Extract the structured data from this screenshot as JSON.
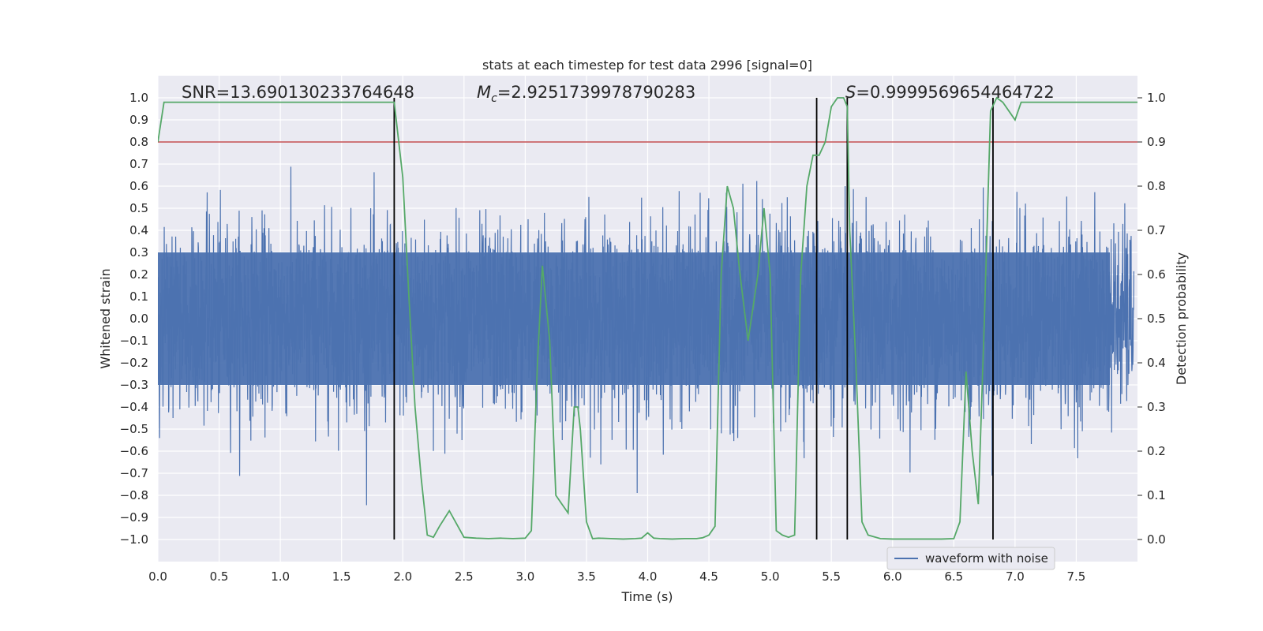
{
  "chart_data": {
    "type": "line",
    "title": "stats at each timestep for test data 2996 [signal=0]",
    "xlabel": "Time (s)",
    "ylabel": "Whitened strain",
    "y2label": "Detection probability",
    "xlim": [
      0.0,
      8.0
    ],
    "ylim": [
      -1.1,
      1.1
    ],
    "y2lim": [
      -0.05,
      1.05
    ],
    "xticks": [
      "0.0",
      "0.5",
      "1.0",
      "1.5",
      "2.0",
      "2.5",
      "3.0",
      "3.5",
      "4.0",
      "4.5",
      "5.0",
      "5.5",
      "6.0",
      "6.5",
      "7.0",
      "7.5"
    ],
    "yticks": [
      "1.0",
      "0.9",
      "0.8",
      "0.7",
      "0.6",
      "0.5",
      "0.4",
      "0.3",
      "0.2",
      "0.1",
      "0.0",
      "−0.1",
      "−0.2",
      "−0.3",
      "−0.4",
      "−0.5",
      "−0.6",
      "−0.7",
      "−0.8",
      "−0.9",
      "−1.0"
    ],
    "y2ticks": [
      "1.0",
      "0.9",
      "0.8",
      "0.7",
      "0.6",
      "0.5",
      "0.4",
      "0.3",
      "0.2",
      "0.1",
      "0.0"
    ],
    "annotations": {
      "snr": "SNR=13.690130233764648",
      "mc_symbol": "M",
      "mc_sub": "c",
      "mc_value": "=2.9251739978790283",
      "s_symbol": "S",
      "s_value": "=0.9999569654464722"
    },
    "legend": {
      "label": "waveform with noise",
      "placement": "lower-right"
    },
    "threshold_y2": 0.9,
    "vlines_x": [
      1.93,
      5.38,
      5.63,
      6.82
    ],
    "probability_series": {
      "x": [
        0.0,
        0.05,
        0.1,
        0.2,
        0.3,
        0.4,
        0.5,
        0.6,
        0.7,
        0.8,
        0.9,
        1.0,
        1.1,
        1.2,
        1.3,
        1.4,
        1.5,
        1.6,
        1.7,
        1.8,
        1.9,
        1.93,
        2.0,
        2.05,
        2.1,
        2.15,
        2.2,
        2.25,
        2.3,
        2.38,
        2.45,
        2.5,
        2.6,
        2.7,
        2.8,
        2.9,
        3.0,
        3.05,
        3.1,
        3.14,
        3.2,
        3.25,
        3.3,
        3.35,
        3.4,
        3.43,
        3.45,
        3.5,
        3.55,
        3.6,
        3.7,
        3.8,
        3.9,
        3.95,
        4.0,
        4.05,
        4.1,
        4.2,
        4.3,
        4.4,
        4.45,
        4.5,
        4.55,
        4.6,
        4.65,
        4.7,
        4.75,
        4.82,
        4.9,
        4.95,
        5.0,
        5.05,
        5.1,
        5.15,
        5.2,
        5.25,
        5.3,
        5.35,
        5.4,
        5.45,
        5.5,
        5.55,
        5.6,
        5.63,
        5.65,
        5.7,
        5.75,
        5.8,
        5.9,
        6.0,
        6.2,
        6.4,
        6.5,
        6.55,
        6.6,
        6.65,
        6.7,
        6.75,
        6.8,
        6.85,
        6.9,
        6.95,
        7.0,
        7.05,
        7.1,
        7.2,
        7.3,
        7.5,
        7.8,
        8.0
      ],
      "y": [
        0.9,
        0.99,
        0.99,
        0.99,
        0.99,
        0.99,
        0.99,
        0.99,
        0.99,
        0.99,
        0.99,
        0.99,
        0.99,
        0.99,
        0.99,
        0.99,
        0.99,
        0.99,
        0.99,
        0.99,
        0.99,
        0.99,
        0.82,
        0.55,
        0.3,
        0.14,
        0.01,
        0.005,
        0.03,
        0.065,
        0.03,
        0.005,
        0.003,
        0.002,
        0.003,
        0.002,
        0.003,
        0.02,
        0.4,
        0.62,
        0.45,
        0.1,
        0.08,
        0.06,
        0.3,
        0.3,
        0.25,
        0.04,
        0.002,
        0.003,
        0.002,
        0.001,
        0.002,
        0.003,
        0.015,
        0.003,
        0.002,
        0.001,
        0.002,
        0.002,
        0.004,
        0.01,
        0.03,
        0.6,
        0.8,
        0.75,
        0.61,
        0.45,
        0.6,
        0.75,
        0.6,
        0.02,
        0.01,
        0.005,
        0.01,
        0.6,
        0.8,
        0.87,
        0.87,
        0.9,
        0.98,
        1.0,
        1.0,
        0.98,
        0.7,
        0.4,
        0.04,
        0.01,
        0.002,
        0.001,
        0.001,
        0.001,
        0.002,
        0.04,
        0.38,
        0.2,
        0.08,
        0.5,
        0.97,
        1.0,
        0.99,
        0.97,
        0.95,
        0.99,
        0.99,
        0.99,
        0.99,
        0.99,
        0.99,
        0.99
      ]
    },
    "grid": true,
    "colors": {
      "background": "#eaeaf2",
      "grid": "#ffffff",
      "waveform": "#4c72b0",
      "probability": "#55a868",
      "threshold": "#c44e52",
      "vline": "#000000",
      "text": "#262626"
    }
  }
}
